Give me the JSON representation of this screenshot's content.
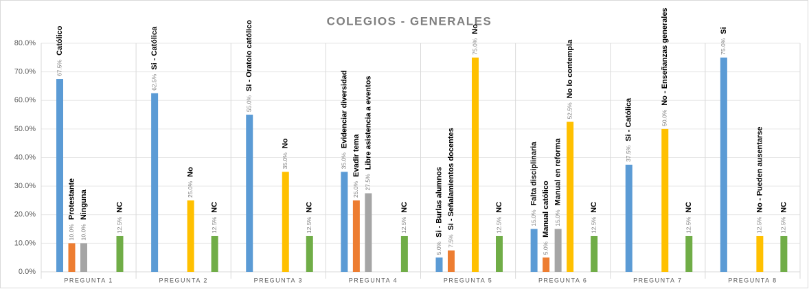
{
  "chart_data": {
    "type": "bar",
    "title": "COLEGIOS - GENERALES",
    "categories": [
      "PREGUNTA 1",
      "PREGUNTA 2",
      "PREGUNTA 3",
      "PREGUNTA 4",
      "PREGUNTA 5",
      "PREGUNTA 6",
      "PREGUNTA 7",
      "PREGUNTA 8"
    ],
    "series": [
      {
        "color": "#5b9bd5",
        "values": [
          67.5,
          62.5,
          55,
          35,
          5,
          15,
          37.5,
          75
        ],
        "value_labels": [
          "67.5%",
          "62.5%",
          "55.0%",
          "35.0%",
          "5.0%",
          "15.0%",
          "37.5%",
          "75.0%"
        ],
        "bar_labels": [
          "Católico",
          "Si - Católica",
          "Si - Oratoio católico",
          "Evidenciar diversidad",
          "Si - Burlas alumnos",
          "Falta disciplinaria",
          "Si - Católica",
          "Si"
        ]
      },
      {
        "color": "#ed7d31",
        "values": [
          10,
          null,
          null,
          25,
          7.5,
          5,
          null,
          null
        ],
        "value_labels": [
          "10.0%",
          null,
          null,
          "25.0%",
          "7.5%",
          "5.0%",
          null,
          null
        ],
        "bar_labels": [
          "Protestante",
          null,
          null,
          "Evadir tema",
          "Si - Señalamientos docentes",
          "Manual católico",
          null,
          null
        ]
      },
      {
        "color": "#a5a5a5",
        "values": [
          10,
          null,
          null,
          27.5,
          null,
          15,
          null,
          null
        ],
        "value_labels": [
          "10.0%",
          null,
          null,
          "27.5%",
          null,
          "15.0%",
          null,
          null
        ],
        "bar_labels": [
          "Ninguna",
          null,
          null,
          "Libre asistencia a eventos",
          null,
          "Manual en reforma",
          null,
          null
        ]
      },
      {
        "color": "#ffc000",
        "values": [
          null,
          25,
          35,
          null,
          75,
          52.5,
          50,
          12.5
        ],
        "value_labels": [
          null,
          "25.0%",
          "35.0%",
          null,
          "75.0%",
          "52.5%",
          "50.0%",
          "12.5%"
        ],
        "bar_labels": [
          null,
          "No",
          "No",
          null,
          "No",
          "No lo contempla",
          "No - Enseñanzas generales",
          "No - Pueden ausentarse"
        ]
      },
      {
        "color": "#70ad47",
        "values": [
          12.5,
          12.5,
          12.5,
          12.5,
          12.5,
          12.5,
          12.5,
          12.5
        ],
        "value_labels": [
          "12.5%",
          "12.5%",
          "12.5%",
          "12.5%",
          "12.5%",
          "12.5%",
          "12.5%",
          "12.5%"
        ],
        "bar_labels": [
          "NC",
          "NC",
          "NC",
          "NC",
          "NC",
          "NC",
          "NC",
          "NC"
        ]
      }
    ],
    "ylim": [
      0,
      80
    ],
    "yticks": [
      {
        "value": 0,
        "label": "0.0%"
      },
      {
        "value": 10,
        "label": "10.0%"
      },
      {
        "value": 20,
        "label": "20.0%"
      },
      {
        "value": 30,
        "label": "30.0%"
      },
      {
        "value": 40,
        "label": "40.0%"
      },
      {
        "value": 50,
        "label": "50.0%"
      },
      {
        "value": 60,
        "label": "60.0%"
      },
      {
        "value": 70,
        "label": "70.0%"
      },
      {
        "value": 80,
        "label": "80.0%"
      }
    ],
    "grid": true
  }
}
